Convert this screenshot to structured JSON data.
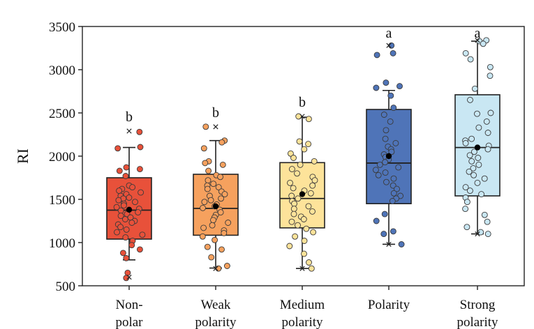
{
  "chart_data": {
    "type": "boxplot",
    "ylabel": "RI",
    "xlabel": "",
    "ylim": [
      500,
      3500
    ],
    "yticks": [
      500,
      1000,
      1500,
      2000,
      2500,
      3000,
      3500
    ],
    "groups": [
      {
        "name": "Non-polar",
        "label_lines": [
          "Non-",
          "polar"
        ],
        "significance": "b",
        "color": "#e8513a",
        "q1": 1040,
        "median": 1375,
        "q3": 1750,
        "whisker_low": 800,
        "whisker_high": 2100,
        "mean": 1380,
        "min_marker": 600,
        "max_marker": 2290,
        "points": [
          2280,
          2105,
          2090,
          1870,
          1850,
          1830,
          1770,
          1660,
          1640,
          1620,
          1600,
          1580,
          1560,
          1540,
          1520,
          1510,
          1490,
          1470,
          1450,
          1430,
          1410,
          1390,
          1370,
          1350,
          1330,
          1310,
          1290,
          1270,
          1250,
          1230,
          1210,
          1180,
          1150,
          1120,
          1090,
          1060,
          1020,
          970,
          920,
          880,
          820,
          650,
          590
        ]
      },
      {
        "name": "Weak polarity",
        "label_lines": [
          "Weak",
          "polarity"
        ],
        "significance": "b",
        "color": "#f6a15e",
        "q1": 1085,
        "median": 1395,
        "q3": 1790,
        "whisker_low": 705,
        "whisker_high": 2180,
        "mean": 1420,
        "min_marker": 700,
        "max_marker": 2340,
        "points": [
          2340,
          2180,
          2160,
          2090,
          1940,
          1920,
          1900,
          1830,
          1780,
          1760,
          1720,
          1680,
          1660,
          1640,
          1620,
          1590,
          1560,
          1540,
          1510,
          1490,
          1470,
          1440,
          1420,
          1400,
          1380,
          1350,
          1320,
          1290,
          1260,
          1230,
          1200,
          1170,
          1140,
          1110,
          1070,
          1030,
          950,
          920,
          830,
          730,
          700
        ]
      },
      {
        "name": "Medium polarity",
        "label_lines": [
          "Medium",
          "polarity"
        ],
        "significance": "b",
        "color": "#fde39a",
        "q1": 1170,
        "median": 1510,
        "q3": 1925,
        "whisker_low": 700,
        "whisker_high": 2450,
        "mean": 1560,
        "min_marker": 700,
        "max_marker": 2460,
        "points": [
          2460,
          2430,
          2170,
          2140,
          2080,
          2030,
          1980,
          1940,
          1900,
          1850,
          1800,
          1760,
          1720,
          1690,
          1660,
          1630,
          1600,
          1570,
          1540,
          1510,
          1480,
          1450,
          1420,
          1390,
          1360,
          1330,
          1300,
          1270,
          1240,
          1200,
          1160,
          1120,
          1070,
          1020,
          960,
          870,
          770,
          700
        ]
      },
      {
        "name": "Polarity",
        "label_lines": [
          "Polarity"
        ],
        "significance": "a",
        "color": "#4f74b8",
        "q1": 1450,
        "median": 1920,
        "q3": 2540,
        "whisker_low": 980,
        "whisker_high": 2760,
        "mean": 2000,
        "min_marker": 980,
        "max_marker": 3280,
        "points": [
          3280,
          3190,
          3170,
          2850,
          2810,
          2790,
          2700,
          2560,
          2480,
          2400,
          2300,
          2200,
          2150,
          2110,
          2080,
          2050,
          2020,
          1990,
          1960,
          1930,
          1900,
          1870,
          1840,
          1810,
          1780,
          1740,
          1700,
          1660,
          1620,
          1570,
          1540,
          1510,
          1480,
          1330,
          1250,
          1130,
          1100,
          980
        ]
      },
      {
        "name": "Strong polarity",
        "label_lines": [
          "Strong",
          "polarity"
        ],
        "significance": "a",
        "color": "#c9e7f3",
        "q1": 1540,
        "median": 2100,
        "q3": 2710,
        "whisker_low": 1100,
        "whisker_high": 3330,
        "mean": 2100,
        "min_marker": 1100,
        "max_marker": 3340,
        "points": [
          3340,
          3330,
          3300,
          3190,
          3120,
          3030,
          2930,
          2780,
          2650,
          2500,
          2490,
          2400,
          2330,
          2270,
          2200,
          2180,
          2150,
          2120,
          2080,
          2050,
          2010,
          1980,
          1940,
          1900,
          1860,
          1820,
          1780,
          1740,
          1690,
          1640,
          1600,
          1560,
          1520,
          1470,
          1390,
          1320,
          1240,
          1180,
          1120,
          1100
        ]
      }
    ]
  }
}
